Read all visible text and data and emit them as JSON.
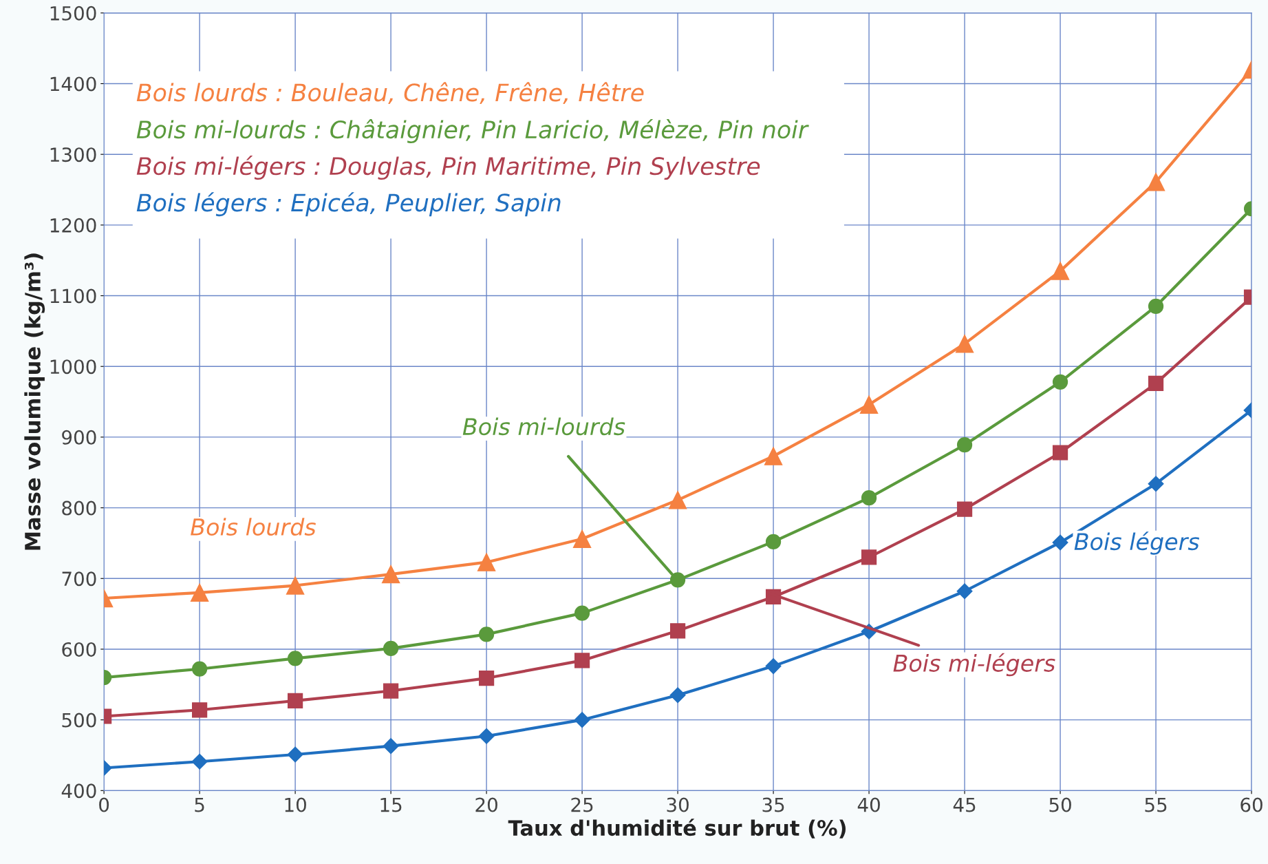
{
  "chart_data": {
    "type": "line",
    "xlabel": "Taux d'humidité sur brut (%)",
    "ylabel": "Masse volumique (kg/m³)",
    "x": [
      0,
      5,
      10,
      15,
      20,
      25,
      30,
      35,
      40,
      45,
      50,
      55,
      60
    ],
    "series": [
      {
        "name": "Bois lourds",
        "color": "#f58141",
        "marker": "triangle",
        "values": [
          672,
          680,
          690,
          706,
          723,
          756,
          811,
          873,
          946,
          1032,
          1135,
          1261,
          1420
        ]
      },
      {
        "name": "Bois mi-lourds",
        "color": "#5a9a3c",
        "marker": "circle",
        "values": [
          560,
          572,
          587,
          601,
          621,
          651,
          698,
          752,
          814,
          889,
          978,
          1085,
          1223
        ]
      },
      {
        "name": "Bois mi-légers",
        "color": "#b0404f",
        "marker": "square",
        "values": [
          505,
          514,
          527,
          541,
          559,
          584,
          626,
          674,
          730,
          798,
          878,
          976,
          1098
        ]
      },
      {
        "name": "Bois légers",
        "color": "#1f6fc0",
        "marker": "diamond",
        "values": [
          432,
          441,
          451,
          463,
          477,
          500,
          535,
          576,
          625,
          682,
          751,
          834,
          938
        ]
      }
    ],
    "annotations": [
      "Bois lourds : Bouleau, Chêne, Frêne, Hêtre",
      "Bois mi-lourds : Châtaignier, Pin Laricio, Mélèze, Pin noir",
      "Bois mi-légers : Douglas, Pin Maritime, Pin Sylvestre",
      "Bois légers : Epicéa, Peuplier, Sapin"
    ],
    "xlim": [
      0,
      60
    ],
    "xticks": [
      0,
      5,
      10,
      15,
      20,
      25,
      30,
      35,
      40,
      45,
      50,
      55,
      60
    ],
    "ylim": [
      400,
      1500
    ],
    "yticks": [
      400,
      500,
      600,
      700,
      800,
      900,
      1000,
      1100,
      1200,
      1300,
      1400,
      1500
    ],
    "grid": true,
    "legend": false,
    "line_style": "solid"
  }
}
